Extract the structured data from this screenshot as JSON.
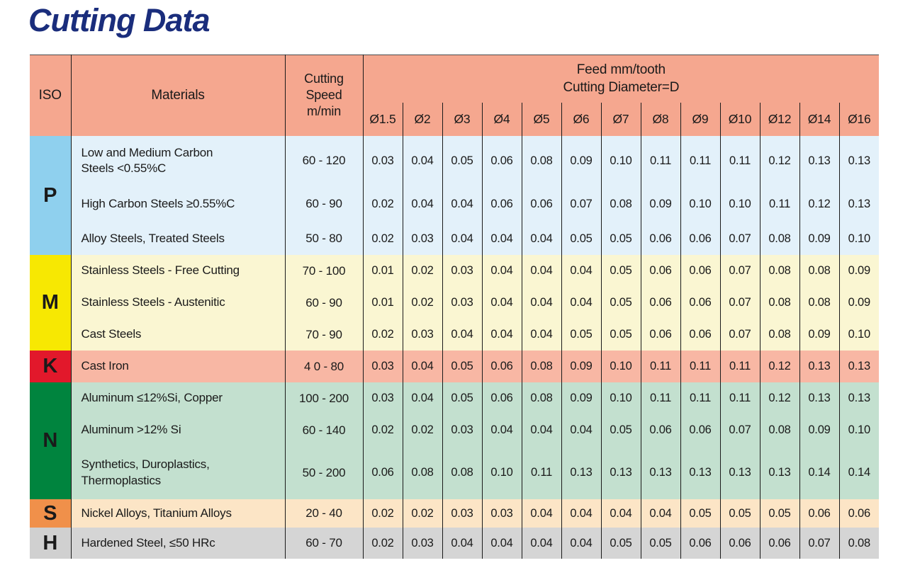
{
  "title": "Cutting Data",
  "colors": {
    "title": "#1A2D7C",
    "header_bg": "#F5A78F",
    "border": "#1A1A1A",
    "text": "#1A1A1A"
  },
  "table": {
    "headers": {
      "iso": "ISO",
      "materials": "Materials",
      "cutting_speed": "Cutting\nSpeed\nm/min",
      "feed_line1": "Feed mm/tooth",
      "feed_line2": "Cutting Diameter=D",
      "diameters": [
        "Ø1.5",
        "Ø2",
        "Ø3",
        "Ø4",
        "Ø5",
        "Ø6",
        "Ø7",
        "Ø8",
        "Ø9",
        "Ø10",
        "Ø12",
        "Ø14",
        "Ø16"
      ]
    },
    "groups": [
      {
        "iso": "P",
        "iso_bg": "#8FD0EE",
        "row_bg": "#E3F1FA",
        "rows": [
          {
            "material": "Low and Medium Carbon\nSteels <0.55%C",
            "speed": "60 - 120",
            "feeds": [
              "0.03",
              "0.04",
              "0.05",
              "0.06",
              "0.08",
              "0.09",
              "0.10",
              "0.11",
              "0.11",
              "0.11",
              "0.12",
              "0.13",
              "0.13"
            ]
          },
          {
            "material": "High Carbon Steels ≥0.55%C",
            "speed": "60 - 90",
            "feeds": [
              "0.02",
              "0.04",
              "0.04",
              "0.06",
              "0.06",
              "0.07",
              "0.08",
              "0.09",
              "0.10",
              "0.10",
              "0.11",
              "0.12",
              "0.13"
            ]
          },
          {
            "material": "Alloy Steels, Treated Steels",
            "speed": "50 - 80",
            "feeds": [
              "0.02",
              "0.03",
              "0.04",
              "0.04",
              "0.04",
              "0.05",
              "0.05",
              "0.06",
              "0.06",
              "0.07",
              "0.08",
              "0.09",
              "0.10"
            ]
          }
        ]
      },
      {
        "iso": "M",
        "iso_bg": "#F7E802",
        "row_bg": "#FAF6D2",
        "rows": [
          {
            "material": "Stainless Steels - Free Cutting",
            "speed": "70 - 100",
            "feeds": [
              "0.01",
              "0.02",
              "0.03",
              "0.04",
              "0.04",
              "0.04",
              "0.05",
              "0.06",
              "0.06",
              "0.07",
              "0.08",
              "0.08",
              "0.09"
            ]
          },
          {
            "material": "Stainless Steels - Austenitic",
            "speed": "60 - 90",
            "feeds": [
              "0.01",
              "0.02",
              "0.03",
              "0.04",
              "0.04",
              "0.04",
              "0.05",
              "0.06",
              "0.06",
              "0.07",
              "0.08",
              "0.08",
              "0.09"
            ]
          },
          {
            "material": "Cast Steels",
            "speed": "70 - 90",
            "feeds": [
              "0.02",
              "0.03",
              "0.04",
              "0.04",
              "0.04",
              "0.05",
              "0.05",
              "0.06",
              "0.06",
              "0.07",
              "0.08",
              "0.09",
              "0.10"
            ]
          }
        ]
      },
      {
        "iso": "K",
        "iso_bg": "#E2182B",
        "row_bg": "#F8B7A4",
        "rows": [
          {
            "material": "Cast Iron",
            "speed": "4 0 - 80",
            "feeds": [
              "0.03",
              "0.04",
              "0.05",
              "0.06",
              "0.08",
              "0.09",
              "0.10",
              "0.11",
              "0.11",
              "0.11",
              "0.12",
              "0.13",
              "0.13"
            ]
          }
        ]
      },
      {
        "iso": "N",
        "iso_bg": "#00843E",
        "row_bg": "#C3E0CF",
        "rows": [
          {
            "material": "Aluminum ≤12%Si, Copper",
            "speed": "100 - 200",
            "feeds": [
              "0.03",
              "0.04",
              "0.05",
              "0.06",
              "0.08",
              "0.09",
              "0.10",
              "0.11",
              "0.11",
              "0.11",
              "0.12",
              "0.13",
              "0.13"
            ]
          },
          {
            "material": "Aluminum >12% Si",
            "speed": "60 - 140",
            "feeds": [
              "0.02",
              "0.02",
              "0.03",
              "0.04",
              "0.04",
              "0.04",
              "0.05",
              "0.06",
              "0.06",
              "0.07",
              "0.08",
              "0.09",
              "0.10"
            ]
          },
          {
            "material": "Synthetics, Duroplastics,\nThermoplastics",
            "speed": "50 - 200",
            "feeds": [
              "0.06",
              "0.08",
              "0.08",
              "0.10",
              "0.11",
              "0.13",
              "0.13",
              "0.13",
              "0.13",
              "0.13",
              "0.13",
              "0.14",
              "0.14"
            ]
          }
        ]
      },
      {
        "iso": "S",
        "iso_bg": "#F0904A",
        "row_bg": "#FCE5C6",
        "rows": [
          {
            "material": "Nickel Alloys, Titanium Alloys",
            "speed": "20 - 40",
            "feeds": [
              "0.02",
              "0.02",
              "0.03",
              "0.03",
              "0.04",
              "0.04",
              "0.04",
              "0.04",
              "0.05",
              "0.05",
              "0.05",
              "0.06",
              "0.06"
            ]
          }
        ]
      },
      {
        "iso": "H",
        "iso_bg": "#D0D0D0",
        "row_bg": "#D5D5D5",
        "rows": [
          {
            "material": "Hardened Steel, ≤50 HRc",
            "speed": "60 - 70",
            "feeds": [
              "0.02",
              "0.03",
              "0.04",
              "0.04",
              "0.04",
              "0.04",
              "0.05",
              "0.05",
              "0.06",
              "0.06",
              "0.06",
              "0.07",
              "0.08"
            ]
          }
        ]
      }
    ]
  }
}
